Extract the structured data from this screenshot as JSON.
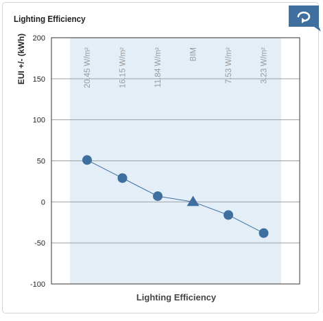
{
  "panel": {
    "title": "Lighting Efficiency",
    "corner_button_icon": "rotate-arrow-icon"
  },
  "colors": {
    "marker": "#3f6f9e",
    "band": "#e3eef7",
    "grid": "#9aa0a6",
    "button": "#3f6f9e"
  },
  "chart_data": {
    "type": "line",
    "title": "",
    "xlabel": "Lighting Efficiency",
    "ylabel": "EUI +/- (kWh)",
    "ylim": [
      -100,
      200
    ],
    "yticks": [
      200,
      150,
      100,
      50,
      0,
      -50,
      -100
    ],
    "grid": true,
    "categories": [
      "20.45 W/m²",
      "16.15 W/m²",
      "11.84 W/m²",
      "BIM",
      "7.53 W/m²",
      "3.23 W/m²"
    ],
    "series": [
      {
        "values": [
          51,
          29,
          7,
          0,
          -16,
          -38
        ],
        "markers": [
          "circle",
          "circle",
          "circle",
          "triangle",
          "circle",
          "circle"
        ]
      }
    ]
  }
}
